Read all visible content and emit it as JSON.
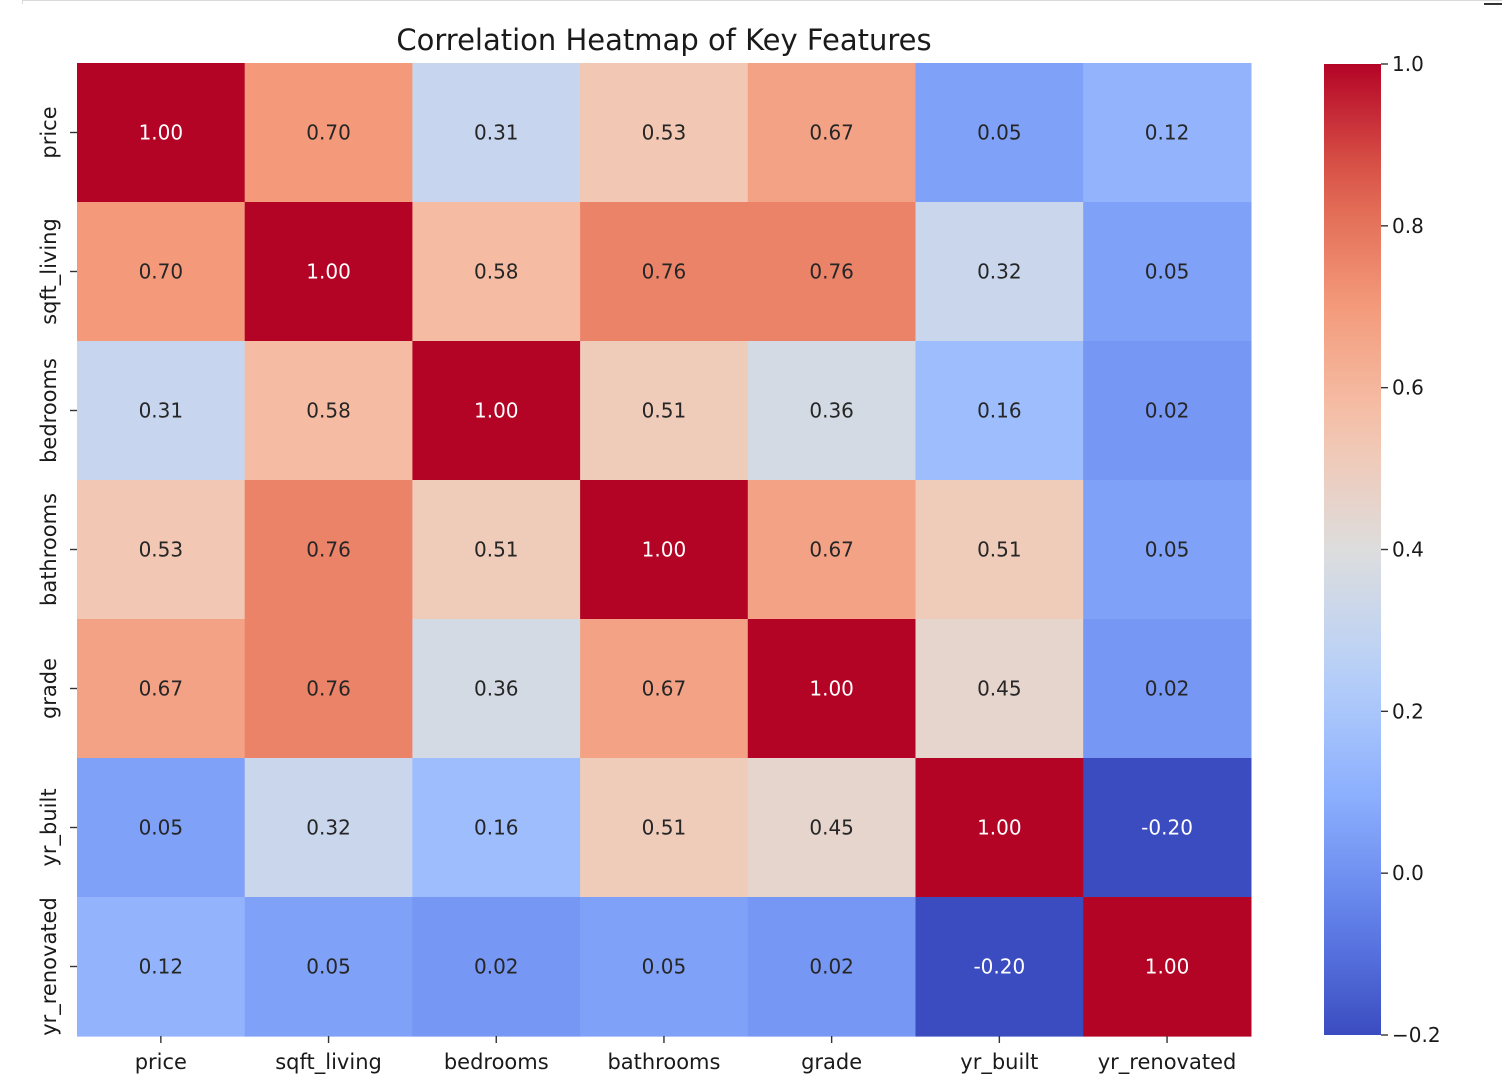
{
  "chart_data": {
    "type": "heatmap",
    "title": "Correlation Heatmap of Key Features",
    "colormap": "coolwarm",
    "x_labels": [
      "price",
      "sqft_living",
      "bedrooms",
      "bathrooms",
      "grade",
      "yr_built",
      "yr_renovated"
    ],
    "y_labels": [
      "price",
      "sqft_living",
      "bedrooms",
      "bathrooms",
      "grade",
      "yr_built",
      "yr_renovated"
    ],
    "values": [
      [
        1.0,
        0.7,
        0.31,
        0.53,
        0.67,
        0.05,
        0.12
      ],
      [
        0.7,
        1.0,
        0.58,
        0.76,
        0.76,
        0.32,
        0.05
      ],
      [
        0.31,
        0.58,
        1.0,
        0.51,
        0.36,
        0.16,
        0.02
      ],
      [
        0.53,
        0.76,
        0.51,
        1.0,
        0.67,
        0.51,
        0.05
      ],
      [
        0.67,
        0.76,
        0.36,
        0.67,
        1.0,
        0.45,
        0.02
      ],
      [
        0.05,
        0.32,
        0.16,
        0.51,
        0.45,
        1.0,
        -0.2
      ],
      [
        0.12,
        0.05,
        0.02,
        0.05,
        0.02,
        -0.2,
        1.0
      ]
    ],
    "value_format": "0.00",
    "colorbar": {
      "range": [
        -0.2,
        1.0
      ],
      "ticks": [
        -0.2,
        0.0,
        0.2,
        0.4,
        0.6,
        0.8,
        1.0
      ],
      "tick_labels": [
        "−0.2",
        "0.0",
        "0.2",
        "0.4",
        "0.6",
        "0.8",
        "1.0"
      ]
    },
    "grid": false
  }
}
